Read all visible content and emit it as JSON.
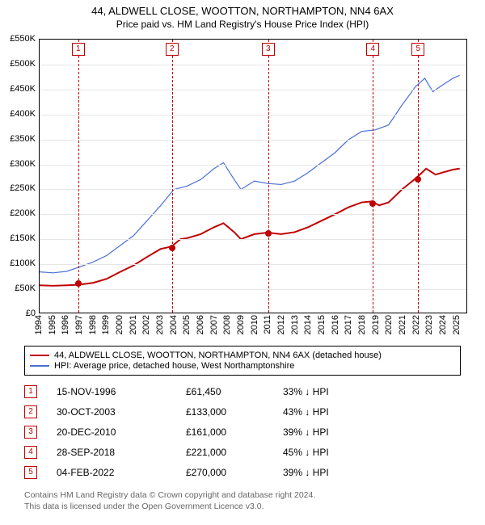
{
  "title": {
    "main": "44, ALDWELL CLOSE, WOOTTON, NORTHAMPTON, NN4 6AX",
    "sub": "Price paid vs. HM Land Registry's House Price Index (HPI)"
  },
  "chart": {
    "type": "line",
    "background_color": "#ffffff",
    "border_color": "#000000",
    "grid_color": "#e6e6e6",
    "x": {
      "min": 1994,
      "max": 2025.8,
      "years": [
        1994,
        1995,
        1996,
        1997,
        1998,
        1999,
        2000,
        2001,
        2002,
        2003,
        2004,
        2005,
        2006,
        2007,
        2008,
        2009,
        2010,
        2011,
        2012,
        2013,
        2014,
        2015,
        2016,
        2017,
        2018,
        2019,
        2020,
        2021,
        2022,
        2023,
        2024,
        2025
      ]
    },
    "y": {
      "min": 0,
      "max": 550000,
      "step": 50000,
      "ticks": [
        "£0",
        "£50K",
        "£100K",
        "£150K",
        "£200K",
        "£250K",
        "£300K",
        "£350K",
        "£400K",
        "£450K",
        "£500K",
        "£550K"
      ]
    },
    "marker_color": "#c00000",
    "series": [
      {
        "id": "property",
        "color": "#c00000",
        "width": 2,
        "data": [
          [
            1994.0,
            55000
          ],
          [
            1995.0,
            54000
          ],
          [
            1996.0,
            55000
          ],
          [
            1996.87,
            56000
          ],
          [
            1998.0,
            60000
          ],
          [
            1999.0,
            68000
          ],
          [
            2000.0,
            82000
          ],
          [
            2001.0,
            95000
          ],
          [
            2002.0,
            112000
          ],
          [
            2003.0,
            128000
          ],
          [
            2003.83,
            133000
          ],
          [
            2004.5,
            148000
          ],
          [
            2005.0,
            150000
          ],
          [
            2006.0,
            158000
          ],
          [
            2007.0,
            172000
          ],
          [
            2007.7,
            180000
          ],
          [
            2008.5,
            162000
          ],
          [
            2009.0,
            148000
          ],
          [
            2010.0,
            158000
          ],
          [
            2010.97,
            161000
          ],
          [
            2012.0,
            158000
          ],
          [
            2013.0,
            162000
          ],
          [
            2014.0,
            172000
          ],
          [
            2015.0,
            185000
          ],
          [
            2016.0,
            198000
          ],
          [
            2017.0,
            212000
          ],
          [
            2018.0,
            222000
          ],
          [
            2018.74,
            224000
          ],
          [
            2019.3,
            216000
          ],
          [
            2020.0,
            222000
          ],
          [
            2021.0,
            248000
          ],
          [
            2022.1,
            272000
          ],
          [
            2022.8,
            290000
          ],
          [
            2023.5,
            278000
          ],
          [
            2024.0,
            282000
          ],
          [
            2024.8,
            288000
          ],
          [
            2025.3,
            290000
          ]
        ]
      },
      {
        "id": "hpi",
        "color": "#4a6fd8",
        "width": 1.2,
        "data": [
          [
            1994.0,
            82000
          ],
          [
            1995.0,
            80000
          ],
          [
            1996.0,
            83000
          ],
          [
            1997.0,
            92000
          ],
          [
            1998.0,
            102000
          ],
          [
            1999.0,
            115000
          ],
          [
            2000.0,
            135000
          ],
          [
            2001.0,
            155000
          ],
          [
            2002.0,
            185000
          ],
          [
            2003.0,
            215000
          ],
          [
            2004.0,
            248000
          ],
          [
            2005.0,
            255000
          ],
          [
            2006.0,
            268000
          ],
          [
            2007.0,
            290000
          ],
          [
            2007.7,
            302000
          ],
          [
            2008.5,
            268000
          ],
          [
            2009.0,
            248000
          ],
          [
            2010.0,
            265000
          ],
          [
            2011.0,
            260000
          ],
          [
            2012.0,
            258000
          ],
          [
            2013.0,
            265000
          ],
          [
            2014.0,
            282000
          ],
          [
            2015.0,
            302000
          ],
          [
            2016.0,
            322000
          ],
          [
            2017.0,
            348000
          ],
          [
            2018.0,
            365000
          ],
          [
            2019.0,
            368000
          ],
          [
            2020.0,
            378000
          ],
          [
            2021.0,
            418000
          ],
          [
            2022.0,
            455000
          ],
          [
            2022.7,
            472000
          ],
          [
            2023.3,
            445000
          ],
          [
            2024.0,
            458000
          ],
          [
            2024.8,
            472000
          ],
          [
            2025.3,
            478000
          ]
        ]
      }
    ],
    "transactions": [
      {
        "n": "1",
        "year": 1996.87,
        "price_y": 61450
      },
      {
        "n": "2",
        "year": 2003.83,
        "price_y": 133000
      },
      {
        "n": "3",
        "year": 2010.97,
        "price_y": 161000
      },
      {
        "n": "4",
        "year": 2018.74,
        "price_y": 221000
      },
      {
        "n": "5",
        "year": 2022.1,
        "price_y": 270000
      }
    ]
  },
  "legend": {
    "items": [
      {
        "color": "#c00000",
        "label": "44, ALDWELL CLOSE, WOOTTON, NORTHAMPTON, NN4 6AX (detached house)"
      },
      {
        "color": "#4a6fd8",
        "label": "HPI: Average price, detached house, West Northamptonshire"
      }
    ]
  },
  "trans_table": {
    "marker_color": "#c00000",
    "rows": [
      {
        "n": "1",
        "date": "15-NOV-1996",
        "price": "£61,450",
        "diff": "33% ↓ HPI"
      },
      {
        "n": "2",
        "date": "30-OCT-2003",
        "price": "£133,000",
        "diff": "43% ↓ HPI"
      },
      {
        "n": "3",
        "date": "20-DEC-2010",
        "price": "£161,000",
        "diff": "39% ↓ HPI"
      },
      {
        "n": "4",
        "date": "28-SEP-2018",
        "price": "£221,000",
        "diff": "45% ↓ HPI"
      },
      {
        "n": "5",
        "date": "04-FEB-2022",
        "price": "£270,000",
        "diff": "39% ↓ HPI"
      }
    ]
  },
  "footer": {
    "line1": "Contains HM Land Registry data © Crown copyright and database right 2024.",
    "line2": "This data is licensed under the Open Government Licence v3.0."
  }
}
